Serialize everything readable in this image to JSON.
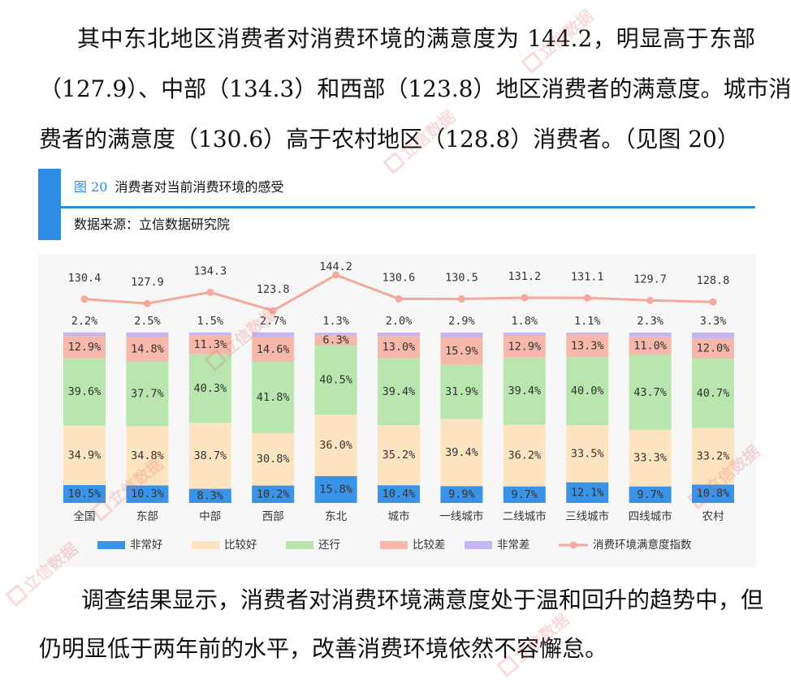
{
  "colors": {
    "accent": "#2e8be3"
  },
  "paragraph_top": {
    "lines": [
      "其中东北地区消费者对消费环境的满意度为 144.2，明显高于东部",
      "（127.9）、中部（134.3）和西部（123.8）地区消费者的满意度。城市消",
      "费者的满意度（130.6）高于农村地区（128.8）消费者。（见图 20）"
    ]
  },
  "figure": {
    "number": "图 20",
    "source": "数据来源：立信数据研究院"
  },
  "chart_data": {
    "type": "bar",
    "stacked": true,
    "title": "消费者对当前消费环境的感受",
    "categories": [
      "全国",
      "东部",
      "中部",
      "西部",
      "东北",
      "城市",
      "一线城市",
      "二线城市",
      "三线城市",
      "四线城市",
      "农村"
    ],
    "series": [
      {
        "name": "非常好",
        "color": "#3a93e6",
        "values": [
          10.5,
          10.3,
          8.3,
          10.2,
          15.8,
          10.4,
          9.9,
          9.7,
          12.1,
          9.7,
          10.8
        ]
      },
      {
        "name": "比较好",
        "color": "#fde4c1",
        "values": [
          34.9,
          34.8,
          38.7,
          30.8,
          36.0,
          35.2,
          39.4,
          36.2,
          33.5,
          33.3,
          33.2
        ]
      },
      {
        "name": "还行",
        "color": "#b8e6ae",
        "values": [
          39.6,
          37.7,
          40.3,
          41.8,
          40.5,
          39.4,
          31.9,
          39.4,
          40.0,
          43.7,
          40.7
        ]
      },
      {
        "name": "比较差",
        "color": "#f6b8aa",
        "values": [
          12.9,
          14.8,
          11.3,
          14.6,
          6.3,
          13.0,
          15.9,
          12.9,
          13.3,
          11.0,
          12.0
        ]
      },
      {
        "name": "非常差",
        "color": "#c6b6ef",
        "values": [
          2.2,
          2.5,
          1.5,
          2.7,
          1.3,
          2.0,
          2.9,
          1.8,
          1.1,
          2.3,
          3.3
        ]
      }
    ],
    "line_series": {
      "name": "消费环境满意度指数",
      "type": "line",
      "color": "#f3a99d",
      "values": [
        130.4,
        127.9,
        134.3,
        123.8,
        144.2,
        130.6,
        130.5,
        131.2,
        131.1,
        129.7,
        128.8
      ]
    },
    "value_suffix": "%",
    "ylim": [
      0,
      100
    ],
    "grid": false,
    "legend_position": "bottom"
  },
  "paragraph_bottom": {
    "lines": [
      "调查结果显示，消费者对消费环境满意度处于温和回升的趋势中，但",
      "仍明显低于两年前的水平，改善消费环境依然不容懈怠。"
    ]
  },
  "watermark": {
    "text": "立信数据"
  }
}
